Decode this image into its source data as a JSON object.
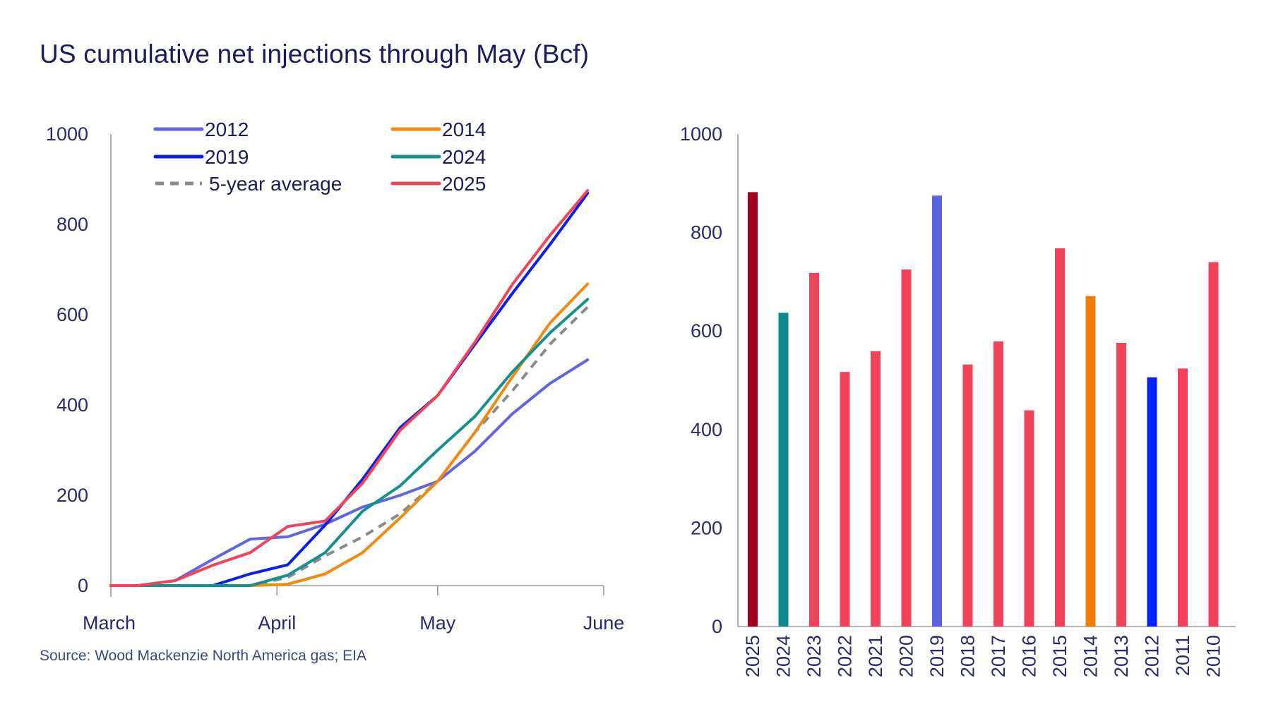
{
  "title": "US cumulative net injections through May (Bcf)",
  "source": "Source: Wood Mackenzie North America gas; EIA",
  "chart_data": [
    {
      "type": "line",
      "title": "US cumulative net injections through May (Bcf)",
      "xlabel": "",
      "ylabel": "",
      "x_unit": "days since March 1",
      "x": [
        0,
        5,
        12,
        19,
        26,
        33,
        40,
        47,
        54,
        61,
        68,
        75,
        82,
        89
      ],
      "xticks": [
        {
          "label": "March",
          "value": 0
        },
        {
          "label": "April",
          "value": 31
        },
        {
          "label": "May",
          "value": 61
        },
        {
          "label": "June",
          "value": 92
        }
      ],
      "xlim": [
        0,
        92
      ],
      "ylim": [
        0,
        1000
      ],
      "yticks": [
        0,
        200,
        400,
        600,
        800,
        1000
      ],
      "grid": false,
      "legend_position": "top-left",
      "series": [
        {
          "name": "2012",
          "color": "#6066e0",
          "dashed": false,
          "values": [
            0,
            0,
            11,
            58,
            103,
            108,
            136,
            174,
            200,
            231,
            298,
            381,
            448,
            500
          ]
        },
        {
          "name": "2019",
          "color": "#0a1fe8",
          "dashed": false,
          "values": [
            0,
            0,
            0,
            0,
            26,
            46,
            134,
            236,
            350,
            421,
            535,
            648,
            756,
            869
          ]
        },
        {
          "name": "5-year average",
          "color": "#8a8a8a",
          "dashed": true,
          "values": [
            0,
            0,
            0,
            0,
            0,
            18,
            66,
            108,
            159,
            231,
            340,
            432,
            535,
            617
          ]
        },
        {
          "name": "2014",
          "color": "#f08a10",
          "dashed": false,
          "values": [
            0,
            0,
            0,
            0,
            0,
            3,
            26,
            73,
            150,
            231,
            340,
            463,
            582,
            668
          ]
        },
        {
          "name": "2024",
          "color": "#14918e",
          "dashed": false,
          "values": [
            0,
            0,
            0,
            0,
            0,
            23,
            73,
            165,
            221,
            300,
            375,
            474,
            560,
            634
          ]
        },
        {
          "name": "2025",
          "color": "#f04458",
          "dashed": false,
          "values": [
            0,
            0,
            11,
            45,
            73,
            131,
            143,
            227,
            344,
            421,
            540,
            668,
            776,
            875
          ]
        }
      ]
    },
    {
      "type": "bar",
      "title": "",
      "xlabel": "",
      "ylabel": "",
      "categories": [
        "2025",
        "2024",
        "2023",
        "2022",
        "2021",
        "2020",
        "2019",
        "2018",
        "2017",
        "2016",
        "2015",
        "2014",
        "2013",
        "2012",
        "2011",
        "2010"
      ],
      "values": [
        882,
        637,
        718,
        517,
        559,
        725,
        875,
        532,
        579,
        439,
        768,
        671,
        576,
        506,
        524,
        740
      ],
      "colors": [
        "#a3001e",
        "#0e8a8e",
        "#f2435a",
        "#f2435a",
        "#f2435a",
        "#f2435a",
        "#5b63e0",
        "#f2435a",
        "#f2435a",
        "#f2435a",
        "#f2435a",
        "#f07e00",
        "#f2435a",
        "#0022ff",
        "#f2435a",
        "#f2435a"
      ],
      "ylim": [
        0,
        1000
      ],
      "yticks": [
        0,
        200,
        400,
        600,
        800,
        1000
      ],
      "grid": false,
      "tick_label_rotation": "vertical"
    }
  ]
}
